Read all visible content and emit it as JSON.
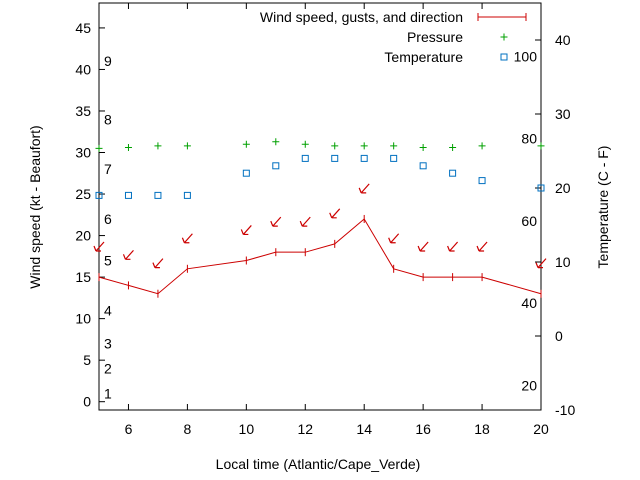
{
  "chart_data": {
    "type": "line",
    "title": "",
    "xlabel": "Local time (Atlantic/Cape_Verde)",
    "ylabel_left": "Wind speed (kt - Beaufort)",
    "ylabel_right": "Temperature (C - F)",
    "xlim": [
      5,
      20
    ],
    "ylim_left": [
      -1,
      48
    ],
    "ylim_right": [
      -10,
      45
    ],
    "x_ticks": [
      6,
      8,
      10,
      12,
      14,
      16,
      18,
      20
    ],
    "y_left_ticks": [
      0,
      5,
      10,
      15,
      20,
      25,
      30,
      35,
      40,
      45
    ],
    "y_right_ticks": [
      -10,
      0,
      10,
      20,
      30,
      40
    ],
    "beaufort_labels": [
      {
        "label": "1",
        "value": 1
      },
      {
        "label": "2",
        "value": 4
      },
      {
        "label": "3",
        "value": 7
      },
      {
        "label": "4",
        "value": 11
      },
      {
        "label": "5",
        "value": 17
      },
      {
        "label": "6",
        "value": 22
      },
      {
        "label": "7",
        "value": 28
      },
      {
        "label": "8",
        "value": 34
      },
      {
        "label": "9",
        "value": 41
      }
    ],
    "fahrenheit_labels": [
      {
        "label": "20",
        "value": -6.67
      },
      {
        "label": "40",
        "value": 4.44
      },
      {
        "label": "60",
        "value": 15.56
      },
      {
        "label": "80",
        "value": 26.67
      },
      {
        "label": "100",
        "value": 37.78
      }
    ],
    "legend_position": "top-right",
    "series": [
      {
        "name": "Wind speed, gusts, and direction",
        "color": "#cc0000",
        "x": [
          5,
          6,
          7,
          8,
          10,
          11,
          12,
          13,
          14,
          15,
          16,
          17,
          18,
          20
        ],
        "values": [
          15,
          14,
          13,
          16,
          17,
          18,
          18,
          19,
          22,
          16,
          15,
          15,
          15,
          13
        ],
        "direction_arrows_y": [
          18.5,
          17.5,
          16.5,
          19.5,
          20.5,
          21.5,
          21.5,
          22.5,
          25.5,
          19.5,
          18.5,
          18.5,
          18.5,
          16.5
        ]
      },
      {
        "name": "Pressure",
        "color": "#00a000",
        "marker": "plus",
        "x": [
          5,
          6,
          7,
          8,
          10,
          11,
          12,
          13,
          14,
          15,
          16,
          17,
          18,
          20
        ],
        "values": [
          30.5,
          30.6,
          30.8,
          30.8,
          31.0,
          31.3,
          31.0,
          30.8,
          30.8,
          30.8,
          30.6,
          30.6,
          30.8,
          30.8
        ]
      },
      {
        "name": "Temperature",
        "color": "#0070c0",
        "marker": "square",
        "x": [
          5,
          6,
          7,
          8,
          10,
          11,
          12,
          13,
          14,
          15,
          16,
          17,
          18,
          20
        ],
        "values": [
          19,
          19,
          19,
          19,
          22,
          23,
          24,
          24,
          24,
          24,
          23,
          22,
          21,
          20
        ]
      }
    ]
  }
}
